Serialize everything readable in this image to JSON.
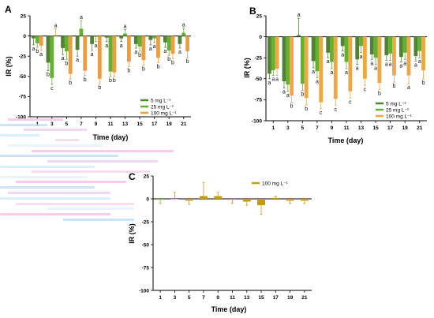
{
  "colors": {
    "s5": "#548235",
    "s25": "#63b12e",
    "s100": "#c49a16",
    "panelA_mid": "#e08e2a",
    "panelA_high": "#ee9d3d",
    "panelB_mid": "#e3952b",
    "panelB_high": "#f0a742",
    "bar_light": "#9dd453"
  },
  "legend_labels": [
    "5 mg L⁻¹",
    "25 mg L⁻¹",
    "100 mg L⁻¹"
  ],
  "chart_data": [
    {
      "panel": "A",
      "type": "bar",
      "categories": [
        "1",
        "3",
        "5",
        "7",
        "9",
        "11",
        "13",
        "15",
        "17",
        "19",
        "21"
      ],
      "xlabel": "Time (day)",
      "ylabel": "IR (%)",
      "ylim": [
        -100,
        25
      ],
      "yticks": [
        "25",
        "0",
        "-25",
        "-50",
        "-75",
        "-100"
      ],
      "series": [
        {
          "name": "5 mg L⁻¹",
          "values": [
            -3,
            -33,
            -15,
            -17,
            -10,
            -2,
            -3,
            -10,
            -5,
            -8,
            -10
          ],
          "err": [
            8,
            10,
            8,
            8,
            8,
            5,
            4,
            5,
            6,
            6,
            5
          ],
          "letters": [
            "a",
            "b",
            "a",
            "a",
            "a",
            "a",
            "a",
            "a",
            "a",
            "a",
            "a"
          ]
        },
        {
          "name": "25 mg L⁻¹",
          "values": [
            -9,
            -52,
            -19,
            9,
            -1,
            -44,
            3,
            -13,
            -3,
            -18,
            4
          ],
          "err": [
            5,
            8,
            10,
            10,
            6,
            6,
            5,
            6,
            5,
            6,
            6
          ],
          "letters": [
            "b",
            "c",
            "b",
            "a",
            "a",
            "b",
            "a",
            "b",
            "a",
            "b",
            "a"
          ]
        },
        {
          "name": "100 mg L⁻¹",
          "values": [
            -12,
            1,
            -47,
            -43,
            -53,
            -45,
            -32,
            -30,
            -27,
            -22,
            -19
          ],
          "err": [
            6,
            8,
            6,
            6,
            6,
            5,
            6,
            6,
            6,
            6,
            8
          ],
          "letters": [
            "a",
            "a",
            "b",
            "b",
            "b",
            "b",
            "b",
            "b",
            "b",
            "b",
            "b"
          ]
        }
      ]
    },
    {
      "panel": "B",
      "type": "bar",
      "categories": [
        "1",
        "3",
        "5",
        "7",
        "9",
        "11",
        "13",
        "15",
        "17",
        "19",
        "21"
      ],
      "xlabel": "Time (day)",
      "ylabel": "IR (%)",
      "ylim": [
        -100,
        25
      ],
      "yticks": [
        "25",
        "0",
        "-25",
        "-50",
        "-75",
        "-100"
      ],
      "series": [
        {
          "name": "5 mg L⁻¹",
          "values": [
            -44,
            -53,
            2,
            -29,
            -19,
            -11,
            -27,
            -21,
            -22,
            -24,
            -23
          ],
          "err": [
            6,
            8,
            20,
            8,
            6,
            6,
            6,
            6,
            6,
            6,
            6
          ],
          "letters": [
            "a",
            "a",
            "a",
            "a",
            "a",
            "a",
            "a",
            "a",
            "a",
            "a",
            "a"
          ]
        },
        {
          "name": "25 mg L⁻¹",
          "values": [
            -40,
            -57,
            -56,
            -41,
            -30,
            -30,
            -11,
            -25,
            -20,
            -19,
            -17
          ],
          "err": [
            6,
            8,
            8,
            8,
            8,
            8,
            8,
            8,
            8,
            8,
            8
          ],
          "letters": [
            "a",
            "a",
            "b",
            "a",
            "a",
            "a",
            "a",
            "a",
            "a",
            "a",
            "a"
          ]
        },
        {
          "name": "100 mg L⁻¹",
          "values": [
            -38,
            -70,
            -73,
            -78,
            -74,
            -65,
            -50,
            -55,
            -46,
            -46,
            -40
          ],
          "err": [
            8,
            8,
            8,
            8,
            8,
            8,
            8,
            8,
            8,
            10,
            10
          ],
          "letters": [
            "a",
            "b",
            "b",
            "c",
            "c",
            "c",
            "c",
            "b",
            "b",
            "a",
            "b"
          ]
        }
      ]
    },
    {
      "panel": "C",
      "type": "bar",
      "categories": [
        "1",
        "3",
        "5",
        "7",
        "9",
        "11",
        "13",
        "15",
        "17",
        "19",
        "21"
      ],
      "xlabel": "Time (day)",
      "ylabel": "IR (%)",
      "ylim": [
        -100,
        25
      ],
      "yticks": [
        "25",
        "0",
        "-25",
        "-50",
        "-75",
        "-100"
      ],
      "series": [
        {
          "name": "100 mg L⁻¹",
          "values": [
            -1,
            0,
            -2,
            3,
            3,
            -1,
            -3,
            -7,
            1,
            -2,
            -2
          ],
          "err": [
            4,
            7,
            4,
            15,
            4,
            4,
            4,
            10,
            2,
            3,
            3
          ]
        }
      ]
    }
  ],
  "panel_labels": [
    "A",
    "B",
    "C"
  ]
}
